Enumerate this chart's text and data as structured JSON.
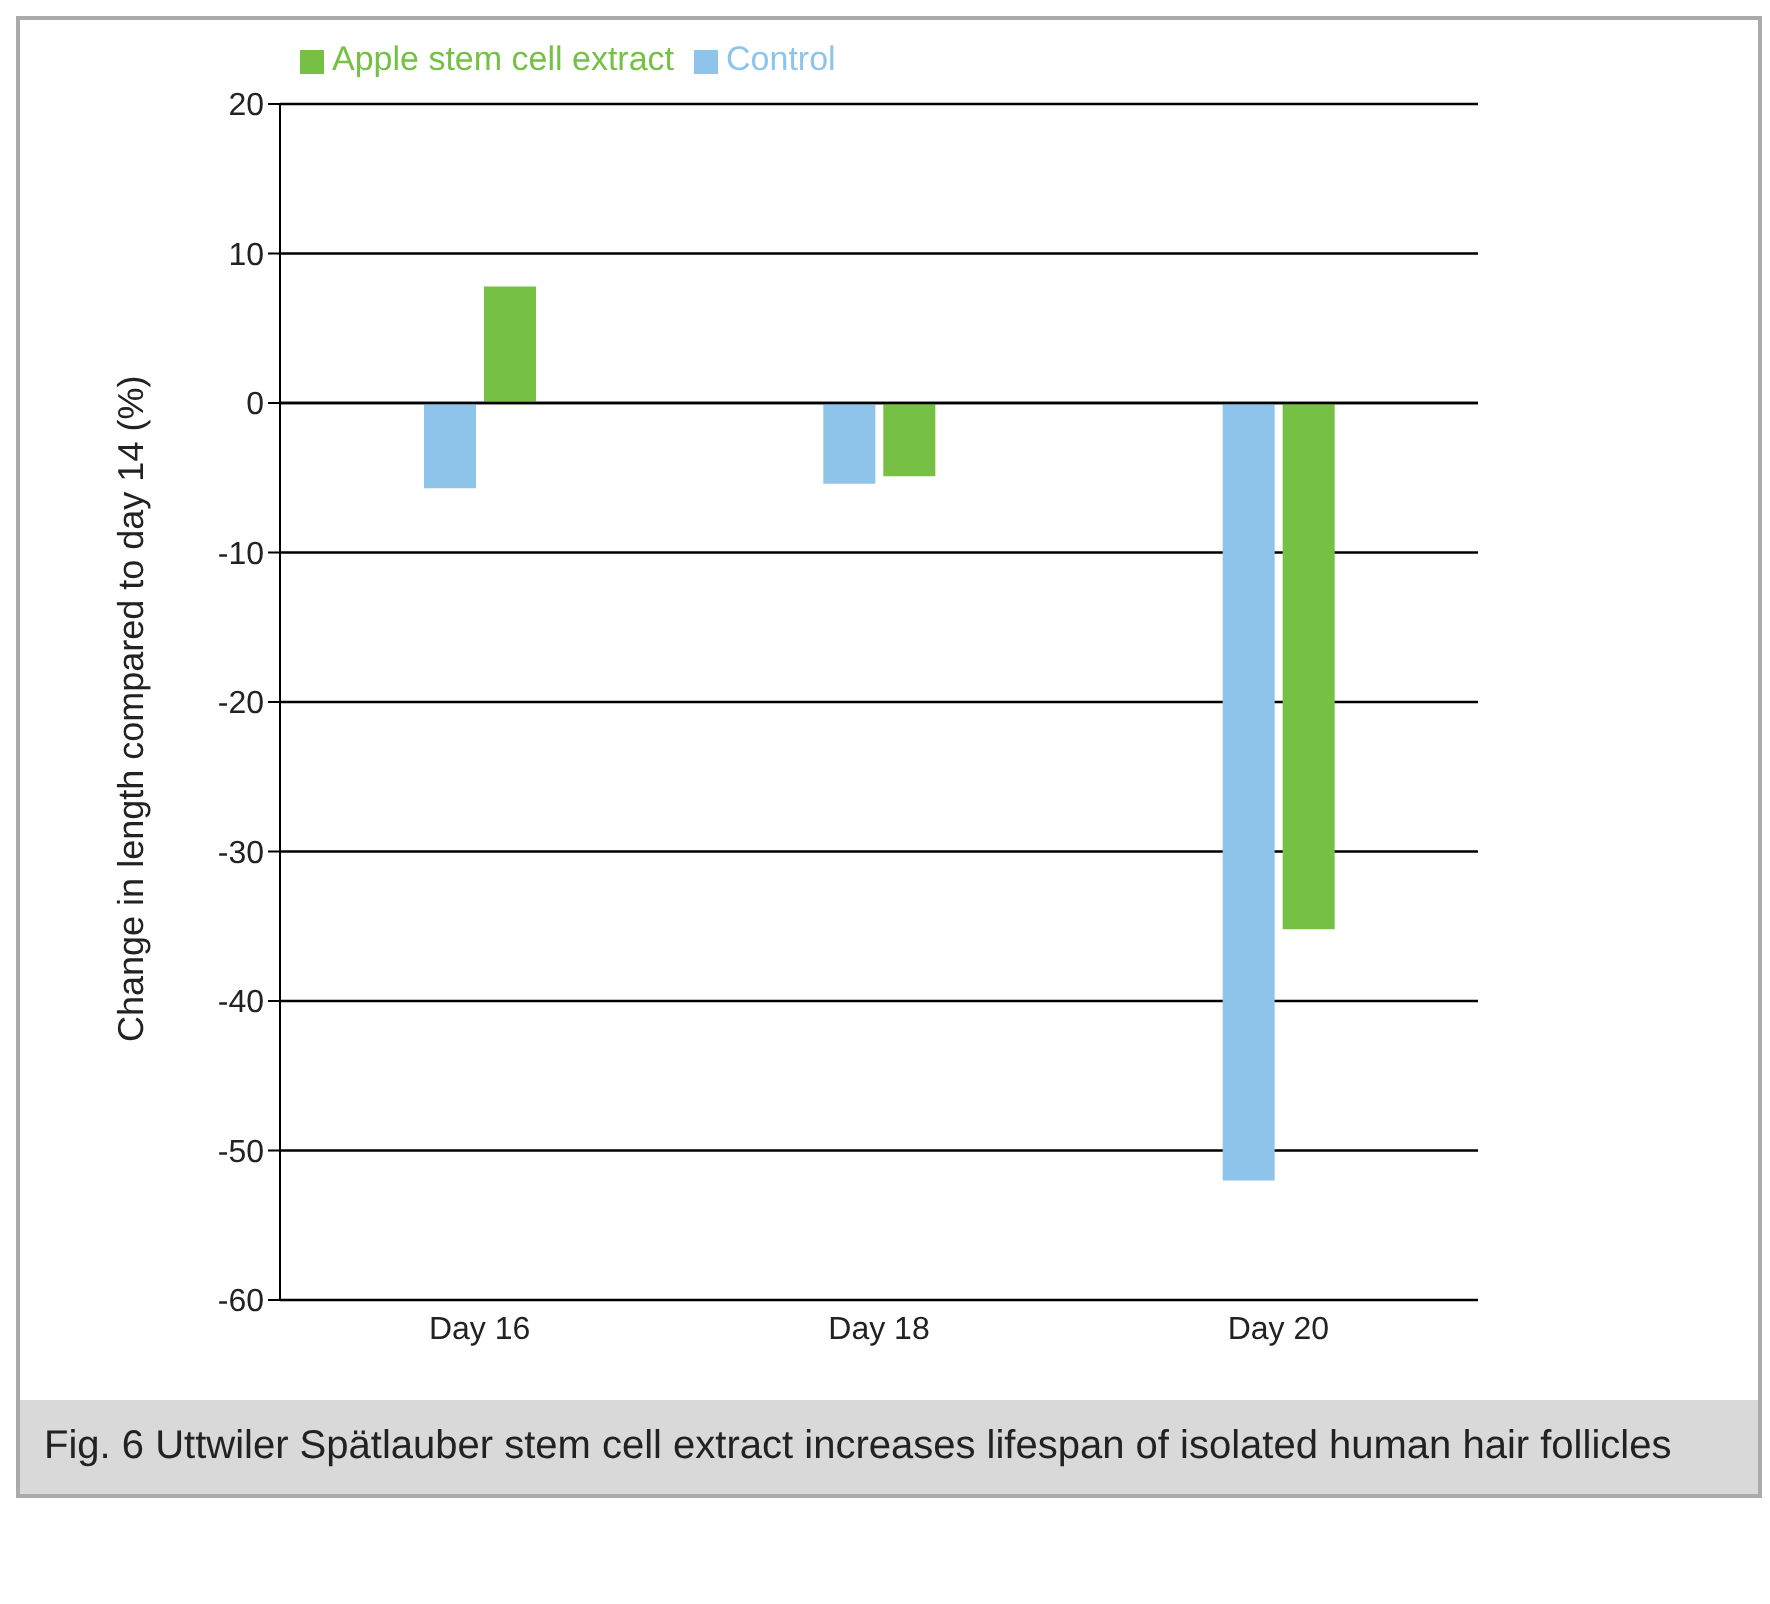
{
  "chart_data": {
    "type": "bar",
    "ylabel": "Change in length compared to day 14 (%)",
    "categories": [
      "Day 16",
      "Day 18",
      "Day 20"
    ],
    "series": [
      {
        "name": "Control",
        "color": "#8fc4ea",
        "values": [
          -5.7,
          -5.4,
          -52
        ]
      },
      {
        "name": "Apple stem cell extract",
        "color": "#76c043",
        "values": [
          7.8,
          -4.9,
          -35.2
        ]
      }
    ],
    "ylim": [
      -60,
      20
    ],
    "yticks": [
      -60,
      -50,
      -40,
      -30,
      -20,
      -10,
      0,
      10,
      20
    ],
    "grid": "y",
    "legend": "top left",
    "annotations": [
      "Fig. 6 Uttwiler Spätlauber stem cell extract increases lifespan of isolated human hair follicles"
    ]
  }
}
